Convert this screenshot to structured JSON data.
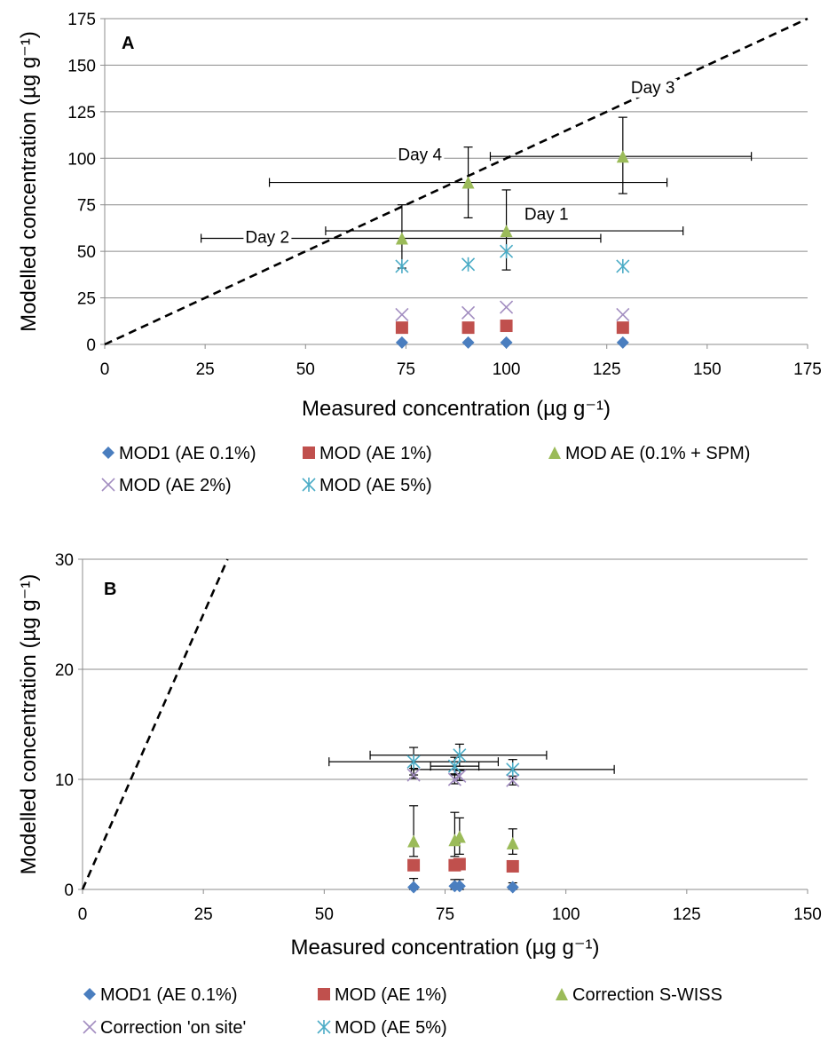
{
  "chart_data": [
    {
      "panel": "A",
      "type": "scatter",
      "xlabel": "Measured concentration (µg g⁻¹)",
      "ylabel": "Modelled concentration (µg g⁻¹)",
      "xlim": [
        0,
        175
      ],
      "ylim": [
        0,
        175
      ],
      "xticks": [
        0,
        25,
        50,
        75,
        100,
        125,
        150,
        175
      ],
      "yticks": [
        0,
        25,
        50,
        75,
        100,
        125,
        150,
        175
      ],
      "grid": "horizontal",
      "reference_line": "1:1 dashed",
      "series": [
        {
          "name": "MOD1 (AE 0.1%)",
          "marker": "diamond",
          "color": "#4a7ebf",
          "points": [
            {
              "x": 74,
              "y": 1
            },
            {
              "x": 90.5,
              "y": 1
            },
            {
              "x": 100,
              "y": 1
            },
            {
              "x": 129,
              "y": 1
            }
          ]
        },
        {
          "name": "MOD (AE 1%)",
          "marker": "square",
          "color": "#c0504d",
          "points": [
            {
              "x": 74,
              "y": 9
            },
            {
              "x": 90.5,
              "y": 9
            },
            {
              "x": 100,
              "y": 10
            },
            {
              "x": 129,
              "y": 9
            }
          ]
        },
        {
          "name": "MOD AE (0.1% + SPM)",
          "marker": "triangle",
          "color": "#9bbb59",
          "points": [
            {
              "x": 74,
              "y": 57,
              "xerr": [
                24,
                123.5
              ],
              "yerr": [
                41,
                75
              ]
            },
            {
              "x": 90.5,
              "y": 87,
              "xerr": [
                41,
                140
              ],
              "yerr": [
                68,
                106
              ]
            },
            {
              "x": 100,
              "y": 61,
              "xerr": [
                55,
                144
              ],
              "yerr": [
                40,
                83
              ]
            },
            {
              "x": 129,
              "y": 101,
              "xerr": [
                96,
                161
              ],
              "yerr": [
                81,
                122
              ]
            }
          ]
        },
        {
          "name": "MOD (AE 2%)",
          "marker": "x",
          "color": "#a28dc0",
          "points": [
            {
              "x": 74,
              "y": 16
            },
            {
              "x": 90.5,
              "y": 17
            },
            {
              "x": 100,
              "y": 20
            },
            {
              "x": 129,
              "y": 16
            }
          ]
        },
        {
          "name": "MOD (AE 5%)",
          "marker": "asterisk",
          "color": "#4bacc6",
          "points": [
            {
              "x": 74,
              "y": 42
            },
            {
              "x": 90.5,
              "y": 43
            },
            {
              "x": 100,
              "y": 50
            },
            {
              "x": 129,
              "y": 42
            }
          ]
        }
      ],
      "annotations": [
        {
          "text": "Day 1",
          "x": 104.5,
          "y": 67
        },
        {
          "text": "Day 2",
          "x": 35,
          "y": 54.5
        },
        {
          "text": "Day 3",
          "x": 131,
          "y": 135
        },
        {
          "text": "Day 4",
          "x": 73,
          "y": 99
        }
      ],
      "legend_position": "bottom"
    },
    {
      "panel": "B",
      "type": "scatter",
      "xlabel": "Measured concentration (µg g⁻¹)",
      "ylabel": "Modelled concentration (µg g⁻¹)",
      "xlim": [
        0,
        150
      ],
      "ylim": [
        0,
        30
      ],
      "xticks": [
        0,
        25,
        50,
        75,
        100,
        125,
        150
      ],
      "yticks": [
        0,
        10,
        20,
        30
      ],
      "grid": "horizontal",
      "reference_line": "1:1 dashed",
      "series": [
        {
          "name": "MOD1 (AE 0.1%)",
          "marker": "diamond",
          "color": "#4a7ebf",
          "points": [
            {
              "x": 68.5,
              "y": 0.2,
              "yerr": [
                0,
                1.0
              ]
            },
            {
              "x": 77,
              "y": 0.3,
              "yerr": [
                0,
                0.9
              ]
            },
            {
              "x": 78,
              "y": 0.3,
              "yerr": [
                0,
                0.9
              ]
            },
            {
              "x": 89,
              "y": 0.2,
              "yerr": [
                0,
                0.6
              ]
            }
          ]
        },
        {
          "name": "MOD (AE 1%)",
          "marker": "square",
          "color": "#c0504d",
          "points": [
            {
              "x": 68.5,
              "y": 2.2
            },
            {
              "x": 77,
              "y": 2.2
            },
            {
              "x": 78,
              "y": 2.3
            },
            {
              "x": 89,
              "y": 2.1
            }
          ]
        },
        {
          "name": "Correction S-WISS",
          "marker": "triangle",
          "color": "#9bbb59",
          "points": [
            {
              "x": 68.5,
              "y": 4.4,
              "yerr": [
                3.0,
                7.6
              ]
            },
            {
              "x": 77,
              "y": 4.5,
              "yerr": [
                3.0,
                7.0
              ]
            },
            {
              "x": 78,
              "y": 4.8,
              "yerr": [
                3.2,
                6.5
              ]
            },
            {
              "x": 89,
              "y": 4.2,
              "yerr": [
                3.2,
                5.5
              ]
            }
          ]
        },
        {
          "name": "Correction 'on site'",
          "marker": "x",
          "color": "#a28dc0",
          "points": [
            {
              "x": 68.5,
              "y": 10.4,
              "yerr": [
                10.1,
                11.0
              ]
            },
            {
              "x": 77,
              "y": 10.0,
              "yerr": [
                9.6,
                10.5
              ]
            },
            {
              "x": 78,
              "y": 10.3,
              "yerr": [
                9.9,
                10.8
              ]
            },
            {
              "x": 89,
              "y": 9.9,
              "yerr": [
                9.5,
                10.3
              ]
            }
          ]
        },
        {
          "name": "MOD (AE 5%)",
          "marker": "asterisk",
          "color": "#4bacc6",
          "points": [
            {
              "x": 68.5,
              "y": 11.6,
              "xerr": [
                51,
                86
              ],
              "yerr": [
                10.4,
                12.9
              ]
            },
            {
              "x": 77,
              "y": 11.2,
              "xerr": [
                72,
                82
              ],
              "yerr": [
                10.4,
                12.0
              ]
            },
            {
              "x": 78,
              "y": 12.2,
              "xerr": [
                59.5,
                96
              ],
              "yerr": [
                11.2,
                13.2
              ]
            },
            {
              "x": 89,
              "y": 10.9,
              "xerr": [
                68,
                110
              ],
              "yerr": [
                10.0,
                11.8
              ]
            }
          ]
        }
      ],
      "legend_position": "bottom"
    }
  ]
}
